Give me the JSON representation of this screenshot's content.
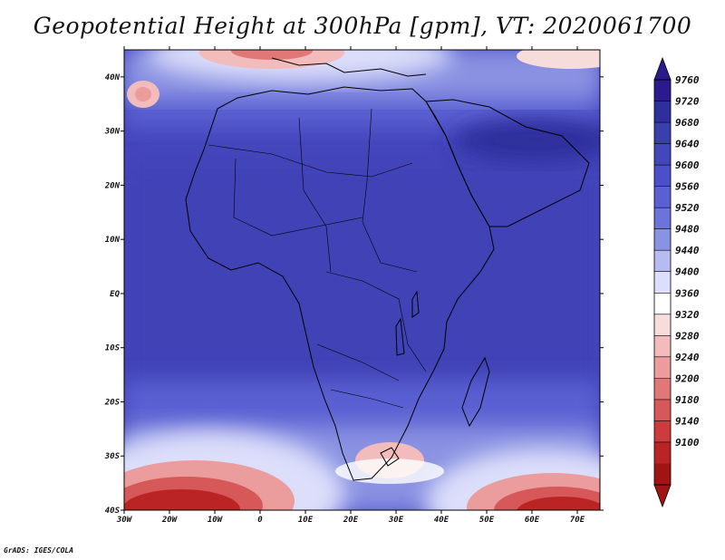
{
  "title": "Geopotential Height at 300hPa [gpm], VT: 2020061700",
  "footer": "GrADS: IGES/COLA",
  "map": {
    "lon_range": [
      -30,
      75
    ],
    "lat_range": [
      -40,
      45
    ],
    "x_ticks": [
      {
        "value": -30,
        "label": "30W"
      },
      {
        "value": -20,
        "label": "20W"
      },
      {
        "value": -10,
        "label": "10W"
      },
      {
        "value": 0,
        "label": "0"
      },
      {
        "value": 10,
        "label": "10E"
      },
      {
        "value": 20,
        "label": "20E"
      },
      {
        "value": 30,
        "label": "30E"
      },
      {
        "value": 40,
        "label": "40E"
      },
      {
        "value": 50,
        "label": "50E"
      },
      {
        "value": 60,
        "label": "60E"
      },
      {
        "value": 70,
        "label": "70E"
      }
    ],
    "y_ticks": [
      {
        "value": 40,
        "label": "40N"
      },
      {
        "value": 30,
        "label": "30N"
      },
      {
        "value": 20,
        "label": "20N"
      },
      {
        "value": 10,
        "label": "10N"
      },
      {
        "value": 0,
        "label": "EQ"
      },
      {
        "value": -10,
        "label": "10S"
      },
      {
        "value": -20,
        "label": "20S"
      },
      {
        "value": -30,
        "label": "30S"
      },
      {
        "value": -40,
        "label": "40S"
      }
    ]
  },
  "colorbar": {
    "labels": [
      "9760",
      "9720",
      "9680",
      "9640",
      "9600",
      "9560",
      "9520",
      "9480",
      "9440",
      "9400",
      "9360",
      "9320",
      "9280",
      "9240",
      "9200",
      "9180",
      "9140",
      "9100"
    ],
    "colors": [
      "#2a1a8c",
      "#2e2f9c",
      "#3a3fae",
      "#4446bc",
      "#4b4fca",
      "#5a60d2",
      "#6c74d9",
      "#8a92e2",
      "#b6bcf0",
      "#dcdefa",
      "#ffffff",
      "#f7dcdc",
      "#f2bcbc",
      "#eb9c9c",
      "#e17878",
      "#d65858",
      "#cc3c3c",
      "#bb2424",
      "#a01414"
    ]
  }
}
